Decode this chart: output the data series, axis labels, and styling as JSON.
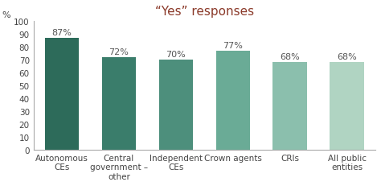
{
  "title": "“Yes” responses",
  "categories": [
    "Autonomous\nCEs",
    "Central\ngovernment –\nother",
    "Independent\nCEs",
    "Crown agents",
    "CRIs",
    "All public\nentities"
  ],
  "values": [
    87,
    72,
    70,
    77,
    68,
    68
  ],
  "bar_colors": [
    "#2d6b5a",
    "#3a7d6b",
    "#4d8f7c",
    "#6aab96",
    "#8bbfad",
    "#b0d4c2"
  ],
  "bar_labels": [
    "87%",
    "72%",
    "70%",
    "77%",
    "68%",
    "68%"
  ],
  "ylabel": "%",
  "ylim": [
    0,
    100
  ],
  "yticks": [
    0,
    10,
    20,
    30,
    40,
    50,
    60,
    70,
    80,
    90,
    100
  ],
  "title_fontsize": 11,
  "label_fontsize": 8,
  "tick_fontsize": 7.5,
  "bar_label_fontsize": 8,
  "background_color": "#ffffff",
  "border_color": "#c0c0c0",
  "title_color": "#8b3a2a"
}
